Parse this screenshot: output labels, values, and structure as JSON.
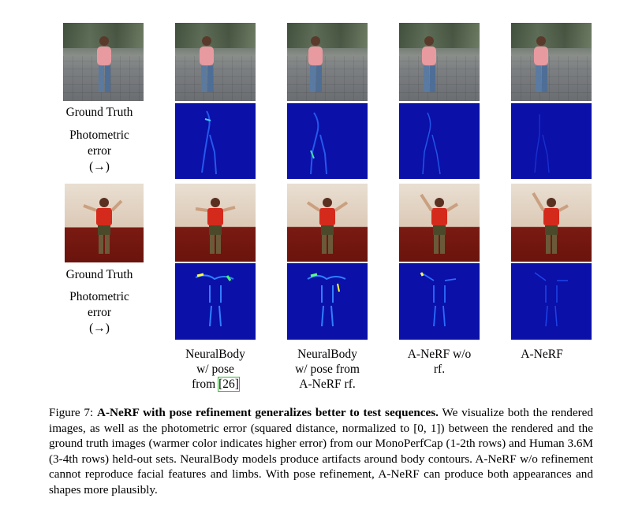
{
  "figure": {
    "row_labels": {
      "gt1": "Ground Truth",
      "pe1_a": "Photometric",
      "pe1_b": "error",
      "pe1_c": "(→)",
      "gt2": "Ground Truth",
      "pe2_a": "Photometric",
      "pe2_b": "error",
      "pe2_c": "(→)"
    },
    "columns": [
      {
        "line1": "NeuralBody",
        "line2": "w/ pose",
        "line3_text": "from ",
        "line3_ref": "[26]"
      },
      {
        "line1": "NeuralBody",
        "line2": "w/ pose from",
        "line3": "A-NeRF rf."
      },
      {
        "line1": "A-NeRF w/o",
        "line2": "rf."
      },
      {
        "line1": "A-NeRF"
      }
    ],
    "colors": {
      "error_bg": "#0a10a8",
      "error_hot": "#ffff40",
      "shirt1": "#e79aa0",
      "shirt2": "#d42a1c",
      "ref_box": "#2eb82e"
    }
  },
  "caption": {
    "label": "Figure 7: ",
    "bold": "A-NeRF with pose refinement generalizes better to test sequences.",
    "text": " We visualize both the rendered images, as well as the photometric error (squared distance, normalized to [0, 1]) between the rendered and the ground truth images (warmer color indicates higher error) from our MonoPerfCap (1-2th rows) and Human 3.6M (3-4th rows) held-out sets. NeuralBody models produce artifacts around body contours. A-NeRF w/o refinement cannot reproduce facial features and limbs. With pose refinement, A-NeRF can produce both appearances and shapes more plausibly."
  }
}
